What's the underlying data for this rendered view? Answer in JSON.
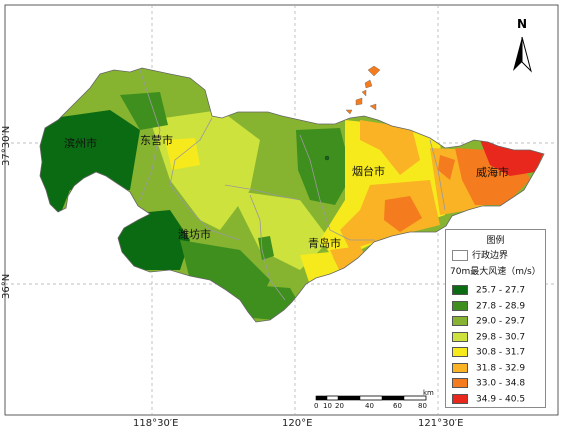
{
  "map": {
    "lon_ticks": [
      "118°30′E",
      "120°E",
      "121°30′E"
    ],
    "lat_ticks": [
      "37°30′N",
      "36°N"
    ],
    "cities": [
      "滨州市",
      "东营市",
      "潍坊市",
      "烟台市",
      "青岛市",
      "威海市"
    ]
  },
  "north_arrow": {
    "letter": "N",
    "icon": "north-arrow-icon"
  },
  "legend": {
    "title": "图例",
    "boundary_label": "行政边界",
    "subtitle": "70m最大风速（m/s）",
    "classes": [
      {
        "label": "25.7 - 27.7",
        "color": "#0b6b12"
      },
      {
        "label": "27.8 - 28.9",
        "color": "#3f8f1e"
      },
      {
        "label": "29.0 - 29.7",
        "color": "#86b430"
      },
      {
        "label": "29.8 - 30.7",
        "color": "#cde23d"
      },
      {
        "label": "30.8 - 31.7",
        "color": "#f7ea1c"
      },
      {
        "label": "31.8 - 32.9",
        "color": "#f9b324"
      },
      {
        "label": "33.0 - 34.8",
        "color": "#f47b1e"
      },
      {
        "label": "34.9 - 40.5",
        "color": "#e8281c"
      }
    ]
  },
  "scale_bar": {
    "unit": "km",
    "ticks": [
      "0",
      "10",
      "20",
      "40",
      "60",
      "80"
    ]
  }
}
